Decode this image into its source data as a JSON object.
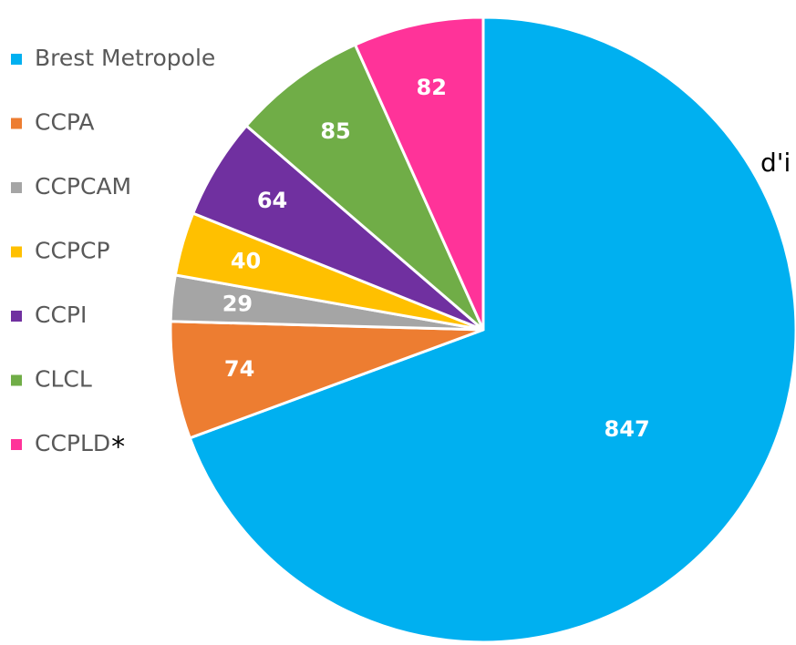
{
  "chart_data": {
    "type": "pie",
    "categories": [
      "Brest Metropole",
      "CCPA",
      "CCPCAM",
      "CCPCP",
      "CCPI",
      "CLCL",
      "CCPLD"
    ],
    "values": [
      847,
      74,
      29,
      40,
      64,
      85,
      82
    ],
    "colors": [
      "#00b0f0",
      "#ed7d31",
      "#a5a5a5",
      "#ffc000",
      "#7030a0",
      "#70ad47",
      "#ff3399"
    ],
    "legend": "left",
    "legend_note": "*",
    "annotation": "d'i"
  }
}
